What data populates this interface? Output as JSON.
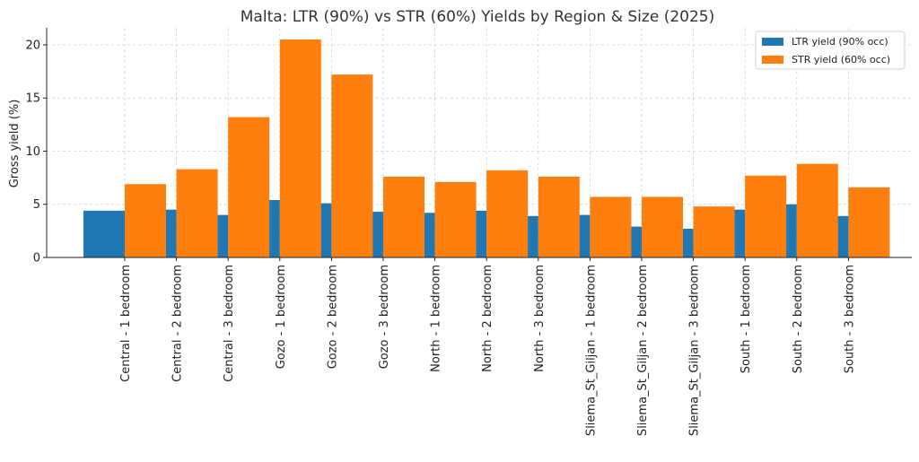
{
  "chart_data": {
    "type": "bar",
    "title": "Malta: LTR (90%) vs STR (60%) Yields by Region & Size (2025)",
    "xlabel": "",
    "ylabel": "Gross yield (%)",
    "ylim": [
      0,
      21.6
    ],
    "yticks": [
      0,
      5,
      10,
      15,
      20
    ],
    "grid": true,
    "legend_position": "top-right",
    "categories": [
      "Central - 1 bedroom",
      "Central - 2 bedroom",
      "Central - 3 bedroom",
      "Gozo - 1 bedroom",
      "Gozo - 2 bedroom",
      "Gozo - 3 bedroom",
      "North - 1 bedroom",
      "North - 2 bedroom",
      "North - 3 bedroom",
      "Sliema_St_Giljan - 1 bedroom",
      "Sliema_St_Giljan - 2 bedroom",
      "Sliema_St_Giljan - 3 bedroom",
      "South - 1 bedroom",
      "South - 2 bedroom",
      "South - 3 bedroom"
    ],
    "series": [
      {
        "name": "LTR yield (90% occ)",
        "color": "#1f77b4",
        "values": [
          4.4,
          4.5,
          4.0,
          5.4,
          5.1,
          4.3,
          4.2,
          4.4,
          3.9,
          4.0,
          2.9,
          2.7,
          4.5,
          5.0,
          3.9
        ]
      },
      {
        "name": "STR yield (60% occ)",
        "color": "#ff7f0e",
        "values": [
          6.9,
          8.3,
          13.2,
          20.5,
          17.2,
          7.6,
          7.1,
          8.2,
          7.6,
          5.7,
          5.7,
          4.8,
          7.7,
          8.8,
          6.6
        ]
      }
    ]
  }
}
